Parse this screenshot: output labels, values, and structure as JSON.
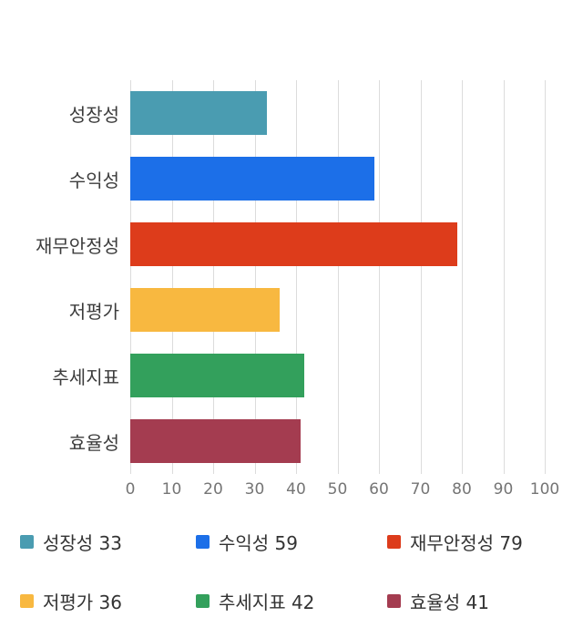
{
  "chart_data": {
    "type": "bar",
    "orientation": "horizontal",
    "title": "",
    "xlabel": "",
    "ylabel": "",
    "categories": [
      "성장성",
      "수익성",
      "재무안정성",
      "저평가",
      "추세지표",
      "효율성"
    ],
    "values": [
      33,
      59,
      79,
      36,
      42,
      41
    ],
    "colors": [
      "#4a9cb1",
      "#1c6fe8",
      "#dd3c1b",
      "#f8b840",
      "#33a05c",
      "#a43c50"
    ],
    "xlim": [
      0,
      100
    ],
    "xticks": [
      0,
      10,
      20,
      30,
      40,
      50,
      60,
      70,
      80,
      90,
      100
    ],
    "grid": true,
    "gridline_color": "#dcdcdc",
    "legend_position": "bottom"
  },
  "legend": {
    "items": [
      {
        "label": "성장성 33",
        "color": "#4a9cb1"
      },
      {
        "label": "수익성 59",
        "color": "#1c6fe8"
      },
      {
        "label": "재무안정성 79",
        "color": "#dd3c1b"
      },
      {
        "label": "저평가 36",
        "color": "#f8b840"
      },
      {
        "label": "추세지표 42",
        "color": "#33a05c"
      },
      {
        "label": "효율성 41",
        "color": "#a43c50"
      }
    ]
  }
}
